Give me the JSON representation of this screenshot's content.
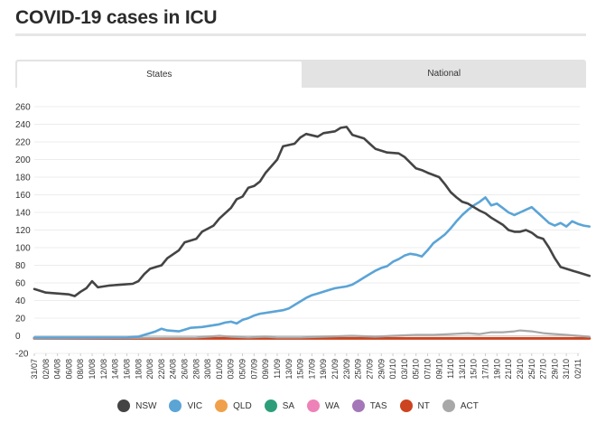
{
  "page": {
    "title": "COVID-19 cases in ICU",
    "tabs": [
      {
        "label": "States",
        "active": true
      },
      {
        "label": "National",
        "active": false
      }
    ]
  },
  "chart_data": {
    "type": "line",
    "title": "",
    "xlabel": "",
    "ylabel": "",
    "ylim": [
      -20,
      260
    ],
    "y_ticks": [
      -20,
      0,
      20,
      40,
      60,
      80,
      100,
      120,
      140,
      160,
      180,
      200,
      220,
      240,
      260
    ],
    "grid": true,
    "legend_position": "bottom",
    "x_start": "31/07",
    "x_end": "02/11",
    "x_tick_labels": [
      "31/07",
      "02/08",
      "04/08",
      "06/08",
      "08/08",
      "10/08",
      "12/08",
      "14/08",
      "16/08",
      "18/08",
      "20/08",
      "22/08",
      "24/08",
      "26/08",
      "28/08",
      "30/08",
      "01/09",
      "03/09",
      "05/09",
      "07/09",
      "09/09",
      "11/09",
      "13/09",
      "15/09",
      "17/09",
      "19/09",
      "21/09",
      "23/09",
      "25/09",
      "27/09",
      "29/09",
      "01/10",
      "03/10",
      "05/10",
      "07/10",
      "09/10",
      "11/10",
      "13/10",
      "15/10",
      "17/10",
      "19/10",
      "21/10",
      "23/10",
      "25/10",
      "27/10",
      "29/10",
      "31/10",
      "02/11"
    ],
    "series": [
      {
        "name": "NSW",
        "color": "#444444",
        "points": [
          [
            "31/07",
            53
          ],
          [
            "02/08",
            49
          ],
          [
            "04/08",
            48
          ],
          [
            "06/08",
            47
          ],
          [
            "07/08",
            45
          ],
          [
            "08/08",
            50
          ],
          [
            "09/08",
            54
          ],
          [
            "10/08",
            62
          ],
          [
            "11/08",
            55
          ],
          [
            "13/08",
            57
          ],
          [
            "15/08",
            58
          ],
          [
            "17/08",
            59
          ],
          [
            "18/08",
            62
          ],
          [
            "19/08",
            70
          ],
          [
            "20/08",
            76
          ],
          [
            "22/08",
            80
          ],
          [
            "23/08",
            88
          ],
          [
            "25/08",
            97
          ],
          [
            "26/08",
            106
          ],
          [
            "28/08",
            110
          ],
          [
            "29/08",
            118
          ],
          [
            "31/08",
            125
          ],
          [
            "01/09",
            133
          ],
          [
            "03/09",
            145
          ],
          [
            "04/09",
            155
          ],
          [
            "05/09",
            158
          ],
          [
            "06/09",
            168
          ],
          [
            "07/09",
            170
          ],
          [
            "08/09",
            175
          ],
          [
            "09/09",
            185
          ],
          [
            "11/09",
            200
          ],
          [
            "12/09",
            215
          ],
          [
            "14/09",
            218
          ],
          [
            "15/09",
            225
          ],
          [
            "16/09",
            229
          ],
          [
            "18/09",
            226
          ],
          [
            "19/09",
            230
          ],
          [
            "21/09",
            232
          ],
          [
            "22/09",
            236
          ],
          [
            "23/09",
            237
          ],
          [
            "24/09",
            228
          ],
          [
            "26/09",
            224
          ],
          [
            "27/09",
            218
          ],
          [
            "28/09",
            212
          ],
          [
            "30/09",
            208
          ],
          [
            "02/10",
            207
          ],
          [
            "03/10",
            203
          ],
          [
            "05/10",
            190
          ],
          [
            "06/10",
            188
          ],
          [
            "07/10",
            185
          ],
          [
            "09/10",
            180
          ],
          [
            "10/10",
            172
          ],
          [
            "11/10",
            163
          ],
          [
            "12/10",
            157
          ],
          [
            "13/10",
            152
          ],
          [
            "14/10",
            150
          ],
          [
            "15/10",
            146
          ],
          [
            "16/10",
            142
          ],
          [
            "17/10",
            139
          ],
          [
            "18/10",
            134
          ],
          [
            "20/10",
            126
          ],
          [
            "21/10",
            120
          ],
          [
            "22/10",
            118
          ],
          [
            "23/10",
            118
          ],
          [
            "24/10",
            120
          ],
          [
            "25/10",
            117
          ],
          [
            "26/10",
            112
          ],
          [
            "27/10",
            110
          ],
          [
            "28/10",
            100
          ],
          [
            "29/10",
            88
          ],
          [
            "30/10",
            78
          ],
          [
            "31/10",
            76
          ],
          [
            "01/11",
            74
          ],
          [
            "02/11",
            72
          ],
          [
            "03/11",
            70
          ],
          [
            "04/11",
            68
          ]
        ]
      },
      {
        "name": "VIC",
        "color": "#5ba4d6",
        "points": [
          [
            "31/07",
            -2
          ],
          [
            "08/08",
            -2
          ],
          [
            "16/08",
            -2
          ],
          [
            "18/08",
            -1
          ],
          [
            "19/08",
            1
          ],
          [
            "20/08",
            3
          ],
          [
            "21/08",
            5
          ],
          [
            "22/08",
            8
          ],
          [
            "23/08",
            6
          ],
          [
            "25/08",
            5
          ],
          [
            "26/08",
            7
          ],
          [
            "27/08",
            9
          ],
          [
            "29/08",
            10
          ],
          [
            "30/08",
            11
          ],
          [
            "01/09",
            13
          ],
          [
            "02/09",
            15
          ],
          [
            "03/09",
            16
          ],
          [
            "04/09",
            14
          ],
          [
            "05/09",
            18
          ],
          [
            "06/09",
            20
          ],
          [
            "07/09",
            23
          ],
          [
            "08/09",
            25
          ],
          [
            "10/09",
            27
          ],
          [
            "12/09",
            29
          ],
          [
            "13/09",
            31
          ],
          [
            "14/09",
            35
          ],
          [
            "15/09",
            39
          ],
          [
            "16/09",
            43
          ],
          [
            "17/09",
            46
          ],
          [
            "18/09",
            48
          ],
          [
            "19/09",
            50
          ],
          [
            "20/09",
            52
          ],
          [
            "21/09",
            54
          ],
          [
            "22/09",
            55
          ],
          [
            "23/09",
            56
          ],
          [
            "24/09",
            58
          ],
          [
            "25/09",
            62
          ],
          [
            "26/09",
            66
          ],
          [
            "27/09",
            70
          ],
          [
            "28/09",
            74
          ],
          [
            "29/09",
            77
          ],
          [
            "30/09",
            79
          ],
          [
            "01/10",
            84
          ],
          [
            "02/10",
            87
          ],
          [
            "03/10",
            91
          ],
          [
            "04/10",
            93
          ],
          [
            "05/10",
            92
          ],
          [
            "06/10",
            90
          ],
          [
            "07/10",
            97
          ],
          [
            "08/10",
            105
          ],
          [
            "09/10",
            110
          ],
          [
            "10/10",
            115
          ],
          [
            "11/10",
            122
          ],
          [
            "12/10",
            130
          ],
          [
            "13/10",
            137
          ],
          [
            "14/10",
            143
          ],
          [
            "15/10",
            148
          ],
          [
            "16/10",
            152
          ],
          [
            "17/10",
            157
          ],
          [
            "18/10",
            148
          ],
          [
            "19/10",
            150
          ],
          [
            "20/10",
            145
          ],
          [
            "21/10",
            140
          ],
          [
            "22/10",
            137
          ],
          [
            "23/10",
            140
          ],
          [
            "24/10",
            143
          ],
          [
            "25/10",
            146
          ],
          [
            "26/10",
            140
          ],
          [
            "27/10",
            134
          ],
          [
            "28/10",
            128
          ],
          [
            "29/10",
            125
          ],
          [
            "30/10",
            128
          ],
          [
            "31/10",
            124
          ],
          [
            "01/11",
            130
          ],
          [
            "02/11",
            127
          ],
          [
            "03/11",
            125
          ],
          [
            "04/11",
            124
          ]
        ]
      },
      {
        "name": "QLD",
        "color": "#f0a04b",
        "points": [
          [
            "31/07",
            -3
          ],
          [
            "04/11",
            -3
          ]
        ]
      },
      {
        "name": "SA",
        "color": "#2e9e7a",
        "points": [
          [
            "31/07",
            -3
          ],
          [
            "04/11",
            -3
          ]
        ]
      },
      {
        "name": "WA",
        "color": "#ee82b8",
        "points": [
          [
            "31/07",
            -3
          ],
          [
            "04/11",
            -3
          ]
        ]
      },
      {
        "name": "TAS",
        "color": "#a477b8",
        "points": [
          [
            "31/07",
            -3
          ],
          [
            "04/11",
            -3
          ]
        ]
      },
      {
        "name": "NT",
        "color": "#cc4420",
        "points": [
          [
            "31/07",
            -3
          ],
          [
            "04/11",
            -3
          ]
        ]
      },
      {
        "name": "ACT",
        "color": "#a8a8a8",
        "points": [
          [
            "31/07",
            -3
          ],
          [
            "28/08",
            -2
          ],
          [
            "30/08",
            -1
          ],
          [
            "01/09",
            0
          ],
          [
            "03/09",
            -1
          ],
          [
            "06/09",
            -2
          ],
          [
            "09/09",
            -1
          ],
          [
            "11/09",
            -2
          ],
          [
            "15/09",
            -2
          ],
          [
            "19/09",
            -1
          ],
          [
            "24/09",
            0
          ],
          [
            "28/09",
            -1
          ],
          [
            "01/10",
            0
          ],
          [
            "05/10",
            1
          ],
          [
            "08/10",
            1
          ],
          [
            "11/10",
            2
          ],
          [
            "14/10",
            3
          ],
          [
            "16/10",
            2
          ],
          [
            "18/10",
            4
          ],
          [
            "20/10",
            4
          ],
          [
            "22/10",
            5
          ],
          [
            "23/10",
            6
          ],
          [
            "25/10",
            5
          ],
          [
            "27/10",
            3
          ],
          [
            "29/10",
            2
          ],
          [
            "31/10",
            1
          ],
          [
            "02/11",
            0
          ],
          [
            "04/11",
            -1
          ]
        ]
      }
    ]
  }
}
